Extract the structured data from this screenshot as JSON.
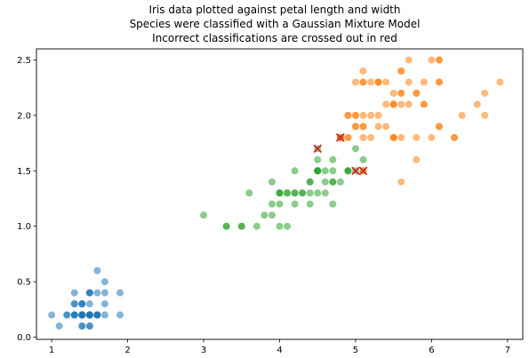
{
  "chart_data": {
    "type": "scatter",
    "title": [
      "Iris data plotted against petal length and width",
      "Species were classified with a Gaussian Mixture Model",
      "Incorrect classifications are crossed out in red"
    ],
    "xlabel": "",
    "ylabel": "",
    "xlim": [
      0.8,
      7.2
    ],
    "ylim": [
      -0.02,
      2.6
    ],
    "x_ticks": [
      1,
      2,
      3,
      4,
      5,
      6,
      7
    ],
    "y_ticks": [
      0.0,
      0.5,
      1.0,
      1.5,
      2.0,
      2.5
    ],
    "x_tick_labels": [
      "1",
      "2",
      "3",
      "4",
      "5",
      "6",
      "7"
    ],
    "y_tick_labels": [
      "0.0",
      "0.5",
      "1.0",
      "1.5",
      "2.0",
      "2.5"
    ],
    "grid": false,
    "marker_color_alpha": 0.55,
    "misclassified_marker": {
      "shape": "x",
      "color": "#d62728"
    },
    "series": [
      {
        "color": "#1f77b4",
        "points": [
          [
            1.4,
            0.2
          ],
          [
            1.4,
            0.2
          ],
          [
            1.3,
            0.2
          ],
          [
            1.5,
            0.2
          ],
          [
            1.4,
            0.2
          ],
          [
            1.7,
            0.4
          ],
          [
            1.4,
            0.3
          ],
          [
            1.5,
            0.2
          ],
          [
            1.4,
            0.2
          ],
          [
            1.5,
            0.1
          ],
          [
            1.5,
            0.2
          ],
          [
            1.6,
            0.2
          ],
          [
            1.4,
            0.1
          ],
          [
            1.1,
            0.1
          ],
          [
            1.2,
            0.2
          ],
          [
            1.5,
            0.4
          ],
          [
            1.3,
            0.4
          ],
          [
            1.4,
            0.3
          ],
          [
            1.7,
            0.3
          ],
          [
            1.5,
            0.3
          ],
          [
            1.7,
            0.2
          ],
          [
            1.5,
            0.4
          ],
          [
            1.0,
            0.2
          ],
          [
            1.7,
            0.5
          ],
          [
            1.9,
            0.2
          ],
          [
            1.6,
            0.2
          ],
          [
            1.6,
            0.4
          ],
          [
            1.5,
            0.2
          ],
          [
            1.4,
            0.2
          ],
          [
            1.6,
            0.2
          ],
          [
            1.6,
            0.2
          ],
          [
            1.5,
            0.4
          ],
          [
            1.5,
            0.1
          ],
          [
            1.4,
            0.2
          ],
          [
            1.5,
            0.2
          ],
          [
            1.2,
            0.2
          ],
          [
            1.3,
            0.2
          ],
          [
            1.4,
            0.1
          ],
          [
            1.3,
            0.2
          ],
          [
            1.5,
            0.2
          ],
          [
            1.3,
            0.3
          ],
          [
            1.3,
            0.3
          ],
          [
            1.3,
            0.2
          ],
          [
            1.6,
            0.6
          ],
          [
            1.9,
            0.4
          ],
          [
            1.4,
            0.3
          ],
          [
            1.6,
            0.2
          ],
          [
            1.4,
            0.2
          ],
          [
            1.5,
            0.2
          ],
          [
            1.4,
            0.2
          ]
        ]
      },
      {
        "color": "#2ca02c",
        "points": [
          [
            4.7,
            1.4
          ],
          [
            4.5,
            1.5
          ],
          [
            4.9,
            1.5
          ],
          [
            4.0,
            1.3
          ],
          [
            4.6,
            1.5
          ],
          [
            4.5,
            1.3
          ],
          [
            4.7,
            1.6
          ],
          [
            3.3,
            1.0
          ],
          [
            4.6,
            1.3
          ],
          [
            3.9,
            1.4
          ],
          [
            3.5,
            1.0
          ],
          [
            4.2,
            1.5
          ],
          [
            4.0,
            1.0
          ],
          [
            4.7,
            1.4
          ],
          [
            3.6,
            1.3
          ],
          [
            4.4,
            1.4
          ],
          [
            4.5,
            1.5
          ],
          [
            4.1,
            1.0
          ],
          [
            4.5,
            1.5
          ],
          [
            3.9,
            1.1
          ],
          [
            4.8,
            1.8
          ],
          [
            4.0,
            1.3
          ],
          [
            4.9,
            1.5
          ],
          [
            4.7,
            1.2
          ],
          [
            4.3,
            1.3
          ],
          [
            4.4,
            1.4
          ],
          [
            4.8,
            1.4
          ],
          [
            5.0,
            1.7
          ],
          [
            4.5,
            1.5
          ],
          [
            3.5,
            1.0
          ],
          [
            3.8,
            1.1
          ],
          [
            3.7,
            1.0
          ],
          [
            3.9,
            1.2
          ],
          [
            5.1,
            1.6
          ],
          [
            4.5,
            1.5
          ],
          [
            4.5,
            1.6
          ],
          [
            4.7,
            1.5
          ],
          [
            4.4,
            1.3
          ],
          [
            4.1,
            1.3
          ],
          [
            4.0,
            1.3
          ],
          [
            4.4,
            1.2
          ],
          [
            4.6,
            1.4
          ],
          [
            4.0,
            1.2
          ],
          [
            3.3,
            1.0
          ],
          [
            4.2,
            1.3
          ],
          [
            4.2,
            1.2
          ],
          [
            4.2,
            1.3
          ],
          [
            4.3,
            1.3
          ],
          [
            3.0,
            1.1
          ],
          [
            4.1,
            1.3
          ],
          [
            4.9,
            1.5
          ],
          [
            4.5,
            1.7
          ],
          [
            5.0,
            1.5
          ],
          [
            5.1,
            1.5
          ]
        ]
      },
      {
        "color": "#ff7f0e",
        "points": [
          [
            6.0,
            2.5
          ],
          [
            5.1,
            1.9
          ],
          [
            5.9,
            2.1
          ],
          [
            5.6,
            1.8
          ],
          [
            5.8,
            2.2
          ],
          [
            6.6,
            2.1
          ],
          [
            6.3,
            1.8
          ],
          [
            5.8,
            1.8
          ],
          [
            6.1,
            2.5
          ],
          [
            5.1,
            2.0
          ],
          [
            5.3,
            1.9
          ],
          [
            5.5,
            2.1
          ],
          [
            5.0,
            2.0
          ],
          [
            5.1,
            2.4
          ],
          [
            5.3,
            2.3
          ],
          [
            5.5,
            1.8
          ],
          [
            6.7,
            2.2
          ],
          [
            6.9,
            2.3
          ],
          [
            5.7,
            2.3
          ],
          [
            6.7,
            2.0
          ],
          [
            4.9,
            1.8
          ],
          [
            5.7,
            2.1
          ],
          [
            6.0,
            1.8
          ],
          [
            4.8,
            1.8
          ],
          [
            4.9,
            1.8
          ],
          [
            5.6,
            2.1
          ],
          [
            5.8,
            1.6
          ],
          [
            6.1,
            1.9
          ],
          [
            6.4,
            2.0
          ],
          [
            5.6,
            2.2
          ],
          [
            5.1,
            1.5
          ],
          [
            5.6,
            1.4
          ],
          [
            6.1,
            2.3
          ],
          [
            5.6,
            2.4
          ],
          [
            5.5,
            1.8
          ],
          [
            4.8,
            1.8
          ],
          [
            5.4,
            2.1
          ],
          [
            5.6,
            2.4
          ],
          [
            5.1,
            2.3
          ],
          [
            5.9,
            2.3
          ],
          [
            5.7,
            2.5
          ],
          [
            5.2,
            2.3
          ],
          [
            5.0,
            1.9
          ],
          [
            5.2,
            2.0
          ],
          [
            5.4,
            2.3
          ],
          [
            5.1,
            1.8
          ],
          [
            4.8,
            1.8
          ],
          [
            5.5,
            1.8
          ],
          [
            6.1,
            2.5
          ],
          [
            5.8,
            2.2
          ],
          [
            5.9,
            2.1
          ],
          [
            5.6,
            2.2
          ],
          [
            5.4,
            1.9
          ],
          [
            5.5,
            2.1
          ],
          [
            5.2,
            1.8
          ],
          [
            6.3,
            1.8
          ],
          [
            5.0,
            2.3
          ],
          [
            5.3,
            2.3
          ],
          [
            5.5,
            2.1
          ],
          [
            6.1,
            2.3
          ],
          [
            6.1,
            1.9
          ],
          [
            5.5,
            2.2
          ],
          [
            5.1,
            2.3
          ],
          [
            4.9,
            2.0
          ],
          [
            4.9,
            2.0
          ],
          [
            5.0,
            1.9
          ],
          [
            5.3,
            2.0
          ],
          [
            5.0,
            2.0
          ],
          [
            5.1,
            1.9
          ],
          [
            5.3,
            2.3
          ]
        ]
      }
    ],
    "misclassified_points": [
      [
        4.5,
        1.7
      ],
      [
        4.8,
        1.8
      ],
      [
        4.8,
        1.8
      ],
      [
        5.0,
        1.5
      ],
      [
        5.1,
        1.5
      ]
    ]
  }
}
